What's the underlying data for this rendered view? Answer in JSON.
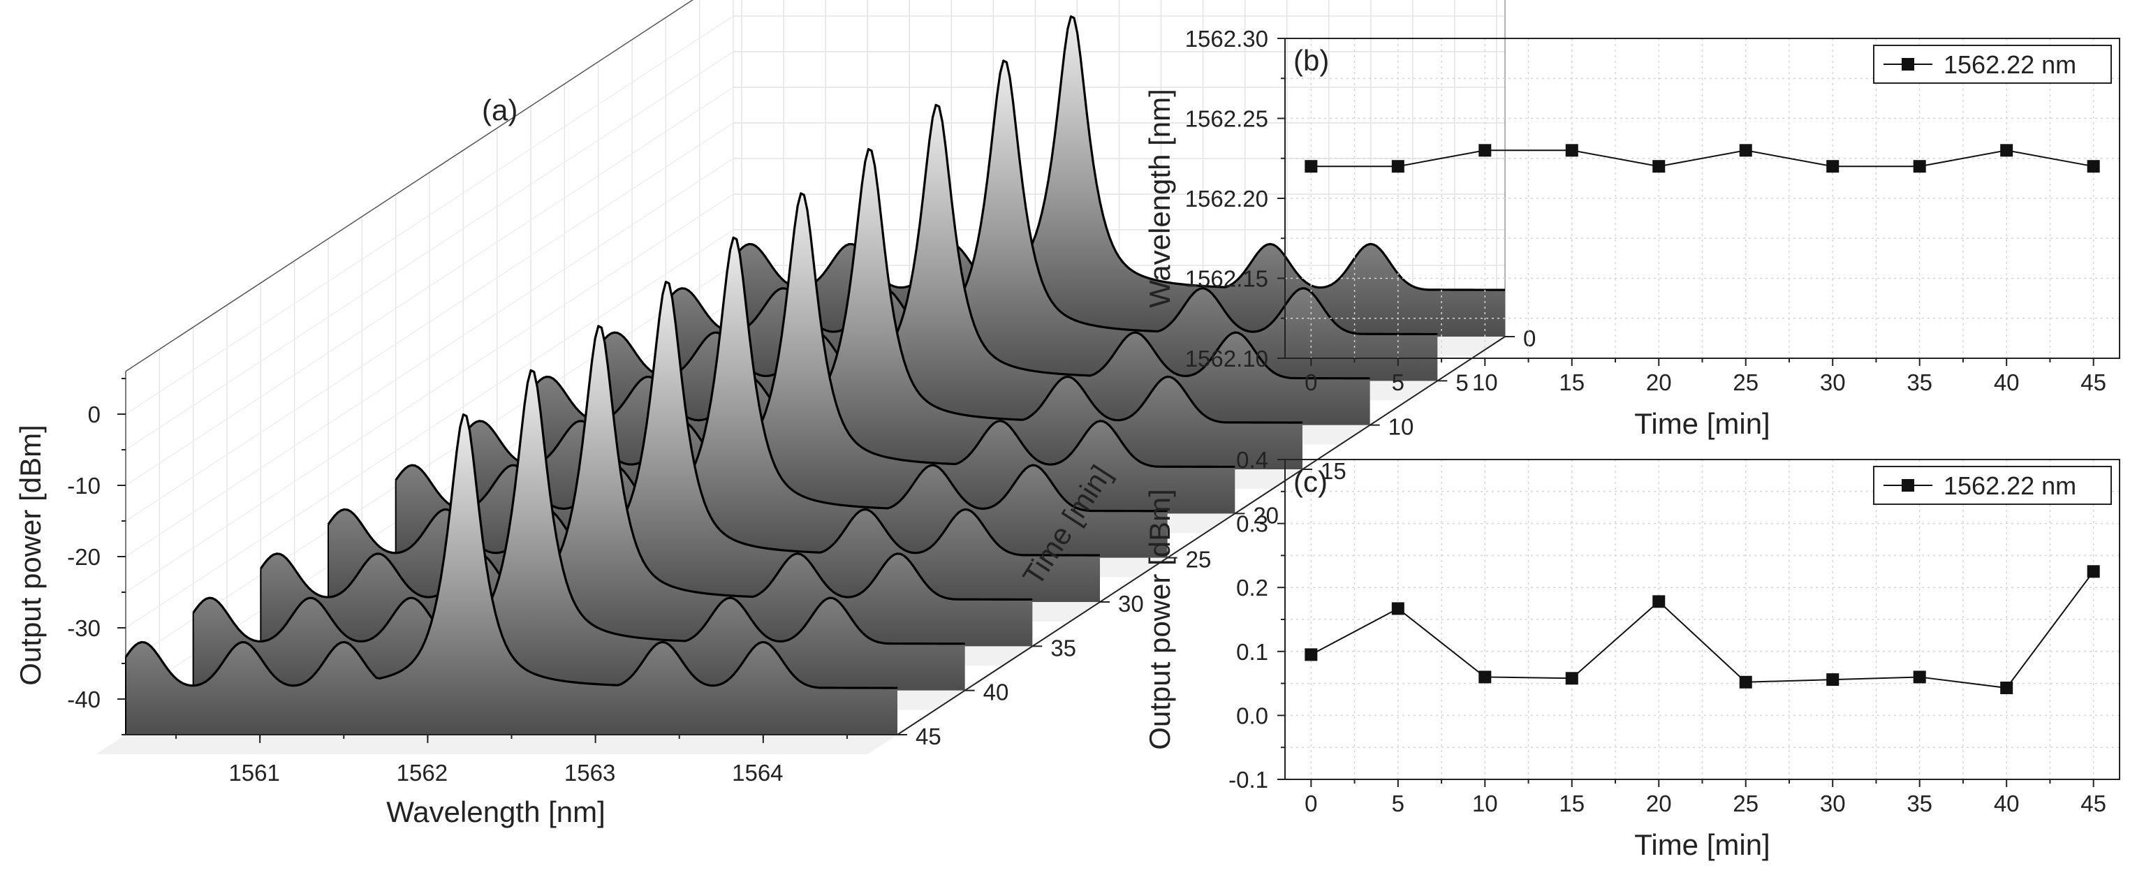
{
  "chart_data": [
    {
      "panel_label": "(a)",
      "type": "area",
      "projection": "3d-waterfall",
      "xlabel": "Wavelength [nm]",
      "ylabel": "Output power [dBm]",
      "zlabel": "Time [min]",
      "x_ticks": [
        1561,
        1562,
        1563,
        1564
      ],
      "y_ticks": [
        0,
        -10,
        -20,
        -30,
        -40
      ],
      "z_ticks": [
        0,
        5,
        10,
        15,
        20,
        25,
        30,
        35,
        40,
        45
      ],
      "x_range": [
        1560.2,
        1564.8
      ],
      "y_range": [
        -45,
        6
      ],
      "times": [
        0,
        5,
        10,
        15,
        20,
        25,
        30,
        35,
        40,
        45
      ],
      "spectrum": {
        "peak_wavelength": 1562.22,
        "peak_power": 0.1,
        "baseline_power": -38.5,
        "sidelobe_power": -32.0,
        "sidelobe_positions": [
          1560.3,
          1560.9,
          1561.5,
          1563.4,
          1564.0
        ],
        "linewidth_nm": 0.11
      }
    },
    {
      "panel_label": "(b)",
      "type": "line",
      "xlabel": "Time [min]",
      "ylabel": "Wavelength [nm]",
      "x": [
        0,
        5,
        10,
        15,
        20,
        25,
        30,
        35,
        40,
        45
      ],
      "series": [
        {
          "name": "1562.22 nm",
          "values": [
            1562.22,
            1562.22,
            1562.23,
            1562.23,
            1562.22,
            1562.23,
            1562.22,
            1562.22,
            1562.23,
            1562.22
          ]
        }
      ],
      "xlim": [
        -1.5,
        46.5
      ],
      "ylim": [
        1562.1,
        1562.3
      ],
      "x_ticks": [
        0,
        5,
        10,
        15,
        20,
        25,
        30,
        35,
        40,
        45
      ],
      "y_ticks": [
        "1562.10",
        "1562.15",
        "1562.20",
        "1562.25",
        "1562.30"
      ],
      "legend_position": "top-right",
      "grid": true
    },
    {
      "panel_label": "(c)",
      "type": "line",
      "xlabel": "Time [min]",
      "ylabel": "Output power [dBm]",
      "x": [
        0,
        5,
        10,
        15,
        20,
        25,
        30,
        35,
        40,
        45
      ],
      "series": [
        {
          "name": "1562.22 nm",
          "values": [
            0.095,
            0.167,
            0.06,
            0.058,
            0.178,
            0.052,
            0.056,
            0.06,
            0.043,
            0.225
          ]
        }
      ],
      "xlim": [
        -1.5,
        46.5
      ],
      "ylim": [
        -0.1,
        0.4
      ],
      "x_ticks": [
        0,
        5,
        10,
        15,
        20,
        25,
        30,
        35,
        40,
        45
      ],
      "y_ticks": [
        "-0.1",
        "0.0",
        "0.1",
        "0.2",
        "0.3",
        "0.4"
      ],
      "legend_position": "top-right",
      "grid": true
    }
  ]
}
